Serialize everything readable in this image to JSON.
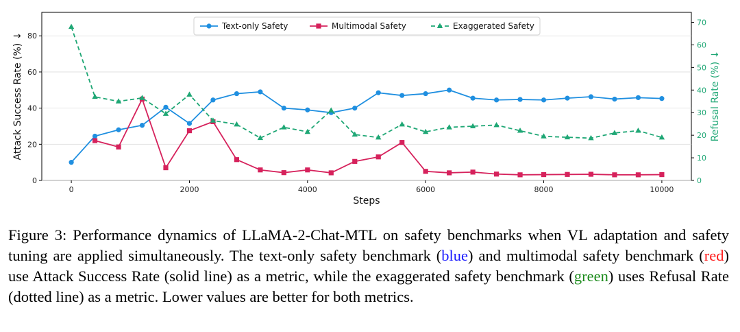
{
  "chart_data": {
    "type": "line",
    "xlabel": "Steps",
    "ylabel_left": "Attack Success Rate (%) ↓",
    "ylabel_right": "Refusal Rate (%) ↓",
    "xlim": [
      -500,
      10500
    ],
    "ylim_left": [
      0,
      93
    ],
    "ylim_right": [
      0,
      74.4
    ],
    "x_ticks": [
      0,
      2000,
      4000,
      6000,
      8000,
      10000
    ],
    "y_ticks_left": [
      0,
      20,
      40,
      60,
      80
    ],
    "y_ticks_right": [
      0,
      10,
      20,
      30,
      40,
      50,
      60,
      70
    ],
    "legend_position": "top-center",
    "x": [
      0,
      400,
      800,
      1200,
      1600,
      2000,
      2400,
      2800,
      3200,
      3600,
      4000,
      4400,
      4800,
      5200,
      5600,
      6000,
      6400,
      6800,
      7200,
      7600,
      8000,
      8400,
      8800,
      9200,
      9600,
      10000
    ],
    "series": [
      {
        "name": "Text-only Safety",
        "axis": "left",
        "color": "#1f8fe0",
        "marker": "circle",
        "dash": "solid",
        "x": [
          0,
          400,
          800,
          1200,
          1600,
          2000,
          2400,
          2800,
          3200,
          3600,
          4000,
          4400,
          4800,
          5200,
          5600,
          6000,
          6400,
          6800,
          7200,
          7600,
          8000,
          8400,
          8800,
          9200,
          9600,
          10000
        ],
        "values": [
          10,
          24.5,
          28,
          30.5,
          40.5,
          31.5,
          44.5,
          48,
          49,
          40,
          39,
          37.5,
          40,
          48.5,
          47,
          48,
          50,
          45.5,
          44.5,
          44.8,
          44.5,
          45.5,
          46.3,
          45,
          45.8,
          45.3
        ]
      },
      {
        "name": "Multimodal Safety",
        "axis": "left",
        "color": "#d6225c",
        "marker": "square",
        "dash": "solid",
        "x": [
          400,
          800,
          1200,
          1600,
          2000,
          2400,
          2800,
          3200,
          3600,
          4000,
          4400,
          4800,
          5200,
          5600,
          6000,
          6400,
          6800,
          7200,
          7600,
          8000,
          8400,
          8800,
          9200,
          9600,
          10000
        ],
        "values": [
          22,
          18.5,
          45,
          7,
          27.5,
          32.5,
          11.5,
          5.8,
          4.3,
          5.8,
          4.2,
          10.5,
          13,
          21,
          5,
          4.2,
          4.6,
          3.5,
          3.1,
          3.2,
          3.3,
          3.4,
          3.1,
          3.1,
          3.2
        ]
      },
      {
        "name": "Exaggerated Safety",
        "axis": "right",
        "color": "#1fa775",
        "marker": "triangle",
        "dash": "dashed",
        "x": [
          0,
          400,
          800,
          1200,
          1600,
          2000,
          2400,
          2800,
          3200,
          3600,
          4000,
          4400,
          4800,
          5200,
          5600,
          6000,
          6400,
          6800,
          7200,
          7600,
          8000,
          8400,
          8800,
          9200,
          9600,
          10000
        ],
        "values": [
          68,
          37,
          35,
          36.5,
          29.5,
          38,
          26.5,
          24.8,
          18.8,
          23.5,
          21.5,
          31,
          20.3,
          19,
          24.8,
          21.5,
          23.5,
          24,
          24.5,
          22,
          19.5,
          19.1,
          18.7,
          21,
          22,
          19
        ]
      }
    ]
  },
  "caption": {
    "part1": "Figure 3: Performance dynamics of LLaMA-2-Chat-MTL on safety benchmarks when VL adaptation and safety tuning are applied simultaneously. The text-only safety benchmark (",
    "blue": "blue",
    "part2": ") and multimodal safety benchmark (",
    "red": "red",
    "part3": ") use Attack Success Rate (solid line) as a metric, while the exaggerated safety benchmark (",
    "green": "green",
    "part4": ") uses Refusal Rate (dotted line) as a metric. Lower values are better for both metrics."
  }
}
